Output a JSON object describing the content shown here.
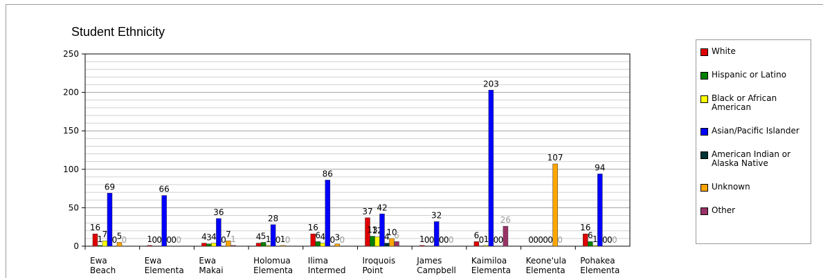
{
  "chart_data": {
    "type": "bar",
    "title": "Student Ethnicity",
    "categories": [
      "Ewa Beach",
      "Ewa Elementa",
      "Ewa Makai",
      "Holomua Elementa",
      "Ilima Intermed",
      "Iroquois Point",
      "James Campbell",
      "Kaimiloa Elementa",
      "Keone'ula Elementa",
      "Pohakea Elementa"
    ],
    "series": [
      {
        "name": "White",
        "color": "#e00000",
        "values": [
          16,
          1,
          4,
          4,
          16,
          37,
          1,
          6,
          0,
          16
        ]
      },
      {
        "name": "Hispanic or Latino",
        "color": "#008000",
        "values": [
          1,
          0,
          3,
          5,
          6,
          13,
          0,
          0,
          0,
          6
        ]
      },
      {
        "name": "Black or African American",
        "color": "#ffff00",
        "values": [
          7,
          0,
          4,
          1,
          4,
          12,
          0,
          1,
          0,
          1
        ]
      },
      {
        "name": "Asian/Pacific Islander",
        "color": "#0000ff",
        "values": [
          69,
          66,
          36,
          28,
          86,
          42,
          32,
          203,
          0,
          94
        ]
      },
      {
        "name": "American Indian or Alaska Native",
        "color": "#003333",
        "values": [
          0,
          0,
          0,
          0,
          0,
          4,
          0,
          0,
          0,
          0
        ]
      },
      {
        "name": "Unknown",
        "color": "#ffa500",
        "values": [
          5,
          0,
          7,
          1,
          3,
          10,
          0,
          0,
          107,
          0
        ]
      },
      {
        "name": "Other",
        "color": "#993366",
        "values": [
          0,
          0,
          1,
          0,
          0,
          6,
          0,
          26,
          0,
          0
        ]
      }
    ],
    "ylim": [
      0,
      250
    ],
    "yticks": [
      0,
      50,
      100,
      150,
      200,
      250
    ],
    "minor_yticks": [
      10,
      20,
      30,
      40,
      60,
      70,
      80,
      90,
      110,
      120,
      130,
      140,
      160,
      170,
      180,
      190,
      210,
      220,
      230,
      240
    ],
    "grid": true,
    "legend": "right"
  }
}
